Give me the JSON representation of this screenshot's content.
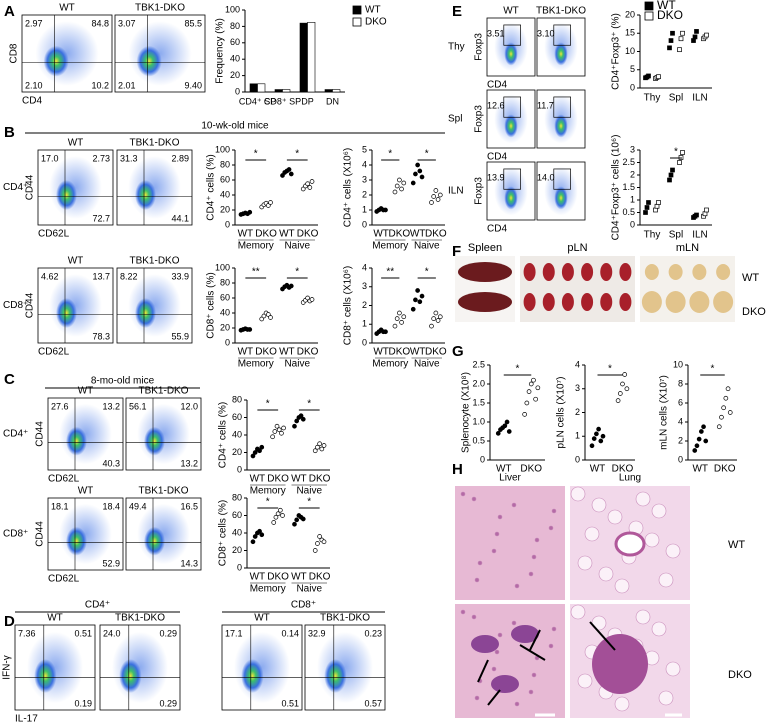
{
  "figure": {
    "panel_letters": [
      "A",
      "B",
      "C",
      "D",
      "E",
      "F",
      "G",
      "H"
    ],
    "flow": [
      {
        "headers": [
          "WT",
          "TBK1-DKO"
        ],
        "rows": [
          {
            "y_label": "CD8",
            "x_label": "CD4",
            "plots": [
              {
                "ul": "2.97",
                "ur": "84.8",
                "ll": "2.10",
                "lr": "10.2"
              },
              {
                "ul": "3.07",
                "ur": "85.5",
                "ll": "2.01",
                "lr": "9.40"
              }
            ]
          }
        ]
      },
      {
        "title": "10-wk-old mice",
        "headers": [
          "WT",
          "TBK1-DKO"
        ],
        "rows": [
          {
            "label": "CD4⁺",
            "y_label": "CD44",
            "x_label": "CD62L",
            "plots": [
              {
                "ul": "17.0",
                "ur": "2.73",
                "lr": "72.7"
              },
              {
                "ul": "31.3",
                "ur": "2.89",
                "lr": "44.1"
              }
            ]
          },
          {
            "label": "CD8⁺",
            "y_label": "CD44",
            "x_label": "CD62L",
            "plots": [
              {
                "ul": "4.62",
                "ur": "13.7",
                "lr": "78.3"
              },
              {
                "ul": "8.22",
                "ur": "33.9",
                "lr": "55.9"
              }
            ]
          }
        ]
      },
      {
        "title": "8-mo-old mice",
        "headers": [
          "WT",
          "TBK1-DKO"
        ],
        "rows": [
          {
            "label": "CD4⁺",
            "y_label": "CD44",
            "x_label": "CD62L",
            "plots": [
              {
                "ul": "27.6",
                "ur": "13.2",
                "lr": "40.3"
              },
              {
                "ul": "56.1",
                "ur": "12.0",
                "lr": "13.2"
              }
            ]
          },
          {
            "label": "CD8⁺",
            "y_label": "CD44",
            "x_label": "CD62L",
            "plots": [
              {
                "ul": "18.1",
                "ur": "18.4",
                "lr": "52.9"
              },
              {
                "ul": "49.4",
                "ur": "16.5",
                "lr": "14.3"
              }
            ]
          }
        ]
      },
      {
        "title": "CD4⁺",
        "headers": [
          "WT",
          "TBK1-DKO"
        ],
        "rows": [
          {
            "y_label": "IFN-γ",
            "x_label": "IL-17",
            "plots": [
              {
                "ul": "7.36",
                "ur": "0.51",
                "lr": "0.19"
              },
              {
                "ul": "24.0",
                "ur": "0.29",
                "lr": "0.29"
              }
            ]
          }
        ]
      },
      {
        "title": "CD8⁺",
        "headers": [
          "WT",
          "TBK1-DKO"
        ],
        "rows": [
          {
            "plots": [
              {
                "ul": "17.1",
                "ur": "0.14",
                "lr": "0.51"
              },
              {
                "ul": "32.9",
                "ur": "0.23",
                "lr": "0.57"
              }
            ]
          }
        ]
      },
      {
        "headers": [
          "WT",
          "TBK1-DKO"
        ],
        "rows": [
          {
            "label": "Thy",
            "y_label": "Foxp3",
            "x_label": "CD4",
            "plots": [
              {
                "ul": "3.51"
              },
              {
                "ul": "3.10"
              }
            ]
          },
          {
            "label": "Spl",
            "y_label": "Foxp3",
            "x_label": "CD4",
            "plots": [
              {
                "ul": "12.6"
              },
              {
                "ul": "11.7"
              }
            ]
          },
          {
            "label": "ILN",
            "y_label": "Foxp3",
            "x_label": "CD4",
            "plots": [
              {
                "ul": "13.9"
              },
              {
                "ul": "14.0"
              }
            ]
          }
        ]
      }
    ],
    "F": {
      "tissues": [
        "Spleen",
        "pLN",
        "mLN"
      ],
      "rows": [
        "WT",
        "DKO"
      ]
    },
    "H": {
      "columns": [
        "Liver",
        "Lung"
      ],
      "rows": [
        "WT",
        "DKO"
      ]
    }
  },
  "chart_data": [
    {
      "type": "bar",
      "y_label": "Frequency (%)",
      "categories": [
        "CD4⁺ SP",
        "CD8⁺ SP",
        "DP",
        "DN"
      ],
      "series": [
        {
          "name": "WT",
          "color": "#000000",
          "values": [
            10,
            3,
            84,
            3
          ]
        },
        {
          "name": "DKO",
          "color": "#ffffff",
          "values": [
            10,
            3,
            85,
            3
          ]
        }
      ],
      "ylim": [
        0,
        100
      ],
      "yticks": [
        0,
        20,
        40,
        60,
        80,
        100
      ],
      "legend": "right"
    },
    {
      "type": "dot",
      "y_label": "CD4⁺ cells (%)",
      "categories": [
        "WT",
        "DKO",
        "WT",
        "DKO"
      ],
      "groups": [
        "Memory",
        "Naive"
      ],
      "colors": [
        "#000000",
        "#ffffff",
        "#000000",
        "#ffffff"
      ],
      "values": [
        [
          14,
          15,
          16,
          15,
          17
        ],
        [
          24,
          27,
          29,
          26,
          30
        ],
        [
          66,
          70,
          72,
          74,
          68
        ],
        [
          48,
          52,
          55,
          50,
          58
        ]
      ],
      "significance": [
        "*",
        "*"
      ],
      "ylim": [
        0,
        100
      ],
      "yticks": [
        0,
        20,
        40,
        60,
        80,
        100
      ]
    },
    {
      "type": "dot",
      "y_label": "CD4⁺ cells (X10⁶)",
      "categories": [
        "WT",
        "DKO",
        "WT",
        "DKO"
      ],
      "groups": [
        "Memory",
        "Naive"
      ],
      "colors": [
        "#000000",
        "#ffffff",
        "#000000",
        "#ffffff"
      ],
      "values": [
        [
          0.9,
          1.0,
          1.1,
          1.0,
          1.0
        ],
        [
          2.2,
          2.6,
          3.0,
          2.4,
          2.8
        ],
        [
          2.8,
          3.4,
          4.0,
          3.6,
          3.2
        ],
        [
          1.5,
          1.9,
          2.3,
          1.7,
          2.0
        ]
      ],
      "significance": [
        "*",
        "*"
      ],
      "ylim": [
        0,
        5
      ],
      "yticks": [
        0,
        1,
        2,
        3,
        4,
        5
      ]
    },
    {
      "type": "dot",
      "y_label": "CD8⁺ cells (%)",
      "categories": [
        "WT",
        "DKO",
        "WT",
        "DKO"
      ],
      "groups": [
        "Memory",
        "Naive"
      ],
      "colors": [
        "#000000",
        "#ffffff",
        "#000000",
        "#ffffff"
      ],
      "values": [
        [
          17,
          18,
          19,
          18,
          18
        ],
        [
          32,
          36,
          40,
          38,
          34
        ],
        [
          72,
          75,
          77,
          74,
          76
        ],
        [
          54,
          57,
          60,
          56,
          58
        ]
      ],
      "significance": [
        "**",
        "*"
      ],
      "ylim": [
        0,
        100
      ],
      "yticks": [
        0,
        20,
        40,
        60,
        80,
        100
      ]
    },
    {
      "type": "dot",
      "y_label": "CD8⁺ cells (X10⁶)",
      "categories": [
        "WT",
        "DKO",
        "WT",
        "DKO"
      ],
      "groups": [
        "Memory",
        "Naive"
      ],
      "colors": [
        "#000000",
        "#ffffff",
        "#000000",
        "#ffffff"
      ],
      "values": [
        [
          0.5,
          0.6,
          0.7,
          0.6,
          0.6
        ],
        [
          0.9,
          1.3,
          1.6,
          1.1,
          1.4
        ],
        [
          1.8,
          2.3,
          2.8,
          2.2,
          2.5
        ],
        [
          0.9,
          1.3,
          1.6,
          1.2,
          1.4
        ]
      ],
      "significance": [
        "**",
        "*"
      ],
      "ylim": [
        0,
        4
      ],
      "yticks": [
        0,
        1,
        2,
        3,
        4
      ]
    },
    {
      "type": "dot",
      "y_label": "CD4⁺ cells (%)",
      "categories": [
        "WT",
        "DKO",
        "WT",
        "DKO"
      ],
      "groups": [
        "Memory",
        "Naive"
      ],
      "colors": [
        "#000000",
        "#ffffff",
        "#000000",
        "#ffffff"
      ],
      "values": [
        [
          16,
          20,
          24,
          22,
          26
        ],
        [
          38,
          44,
          50,
          46,
          42,
          48
        ],
        [
          50,
          56,
          60,
          62,
          58
        ],
        [
          22,
          26,
          30,
          24,
          28
        ]
      ],
      "significance": [
        "*",
        "*"
      ],
      "ylim": [
        0,
        80
      ],
      "yticks": [
        0,
        20,
        40,
        60,
        80
      ]
    },
    {
      "type": "dot",
      "y_label": "CD8⁺ cells (%)",
      "categories": [
        "WT",
        "DKO",
        "WT",
        "DKO"
      ],
      "groups": [
        "Memory",
        "Naive"
      ],
      "colors": [
        "#000000",
        "#ffffff",
        "#000000",
        "#ffffff"
      ],
      "values": [
        [
          30,
          36,
          40,
          42,
          38
        ],
        [
          52,
          58,
          62,
          66,
          60
        ],
        [
          50,
          55,
          60,
          58,
          56
        ],
        [
          20,
          28,
          36,
          32,
          30
        ]
      ],
      "significance": [
        "*",
        "*"
      ],
      "ylim": [
        0,
        80
      ],
      "yticks": [
        0,
        20,
        40,
        60,
        80
      ]
    },
    {
      "type": "paired",
      "y_label": "CD4⁺Foxp3⁺ (%)",
      "categories": [
        "Thy",
        "Spl",
        "ILN"
      ],
      "series": [
        {
          "name": "WT",
          "color": "#000000",
          "values": [
            [
              2.8,
              3.0,
              3.3
            ],
            [
              11,
              13,
              15
            ],
            [
              13,
              14,
              15.5
            ]
          ]
        },
        {
          "name": "DKO",
          "color": "#ffffff",
          "values": [
            [
              2.6,
              2.9,
              3.1
            ],
            [
              10.5,
              13.5,
              15
            ],
            [
              13.5,
              14,
              14.5
            ]
          ]
        }
      ],
      "ylim": [
        0,
        20
      ],
      "yticks": [
        0,
        5,
        10,
        15,
        20
      ],
      "legend": "top"
    },
    {
      "type": "paired",
      "y_label": "CD4⁺Foxp3⁺ cells (10⁶)",
      "categories": [
        "Thy",
        "Spl",
        "ILN"
      ],
      "series": [
        {
          "name": "WT",
          "color": "#000000",
          "values": [
            [
              0.5,
              0.7,
              0.9
            ],
            [
              1.8,
              2.0,
              2.2
            ],
            [
              0.3,
              0.35,
              0.4
            ]
          ]
        },
        {
          "name": "DKO",
          "color": "#ffffff",
          "values": [
            [
              0.6,
              0.75,
              0.9
            ],
            [
              2.5,
              2.7,
              2.9
            ],
            [
              0.35,
              0.45,
              0.6
            ]
          ]
        }
      ],
      "significance": [
        null,
        "*",
        null
      ],
      "ylim": [
        0,
        3
      ],
      "yticks": [
        0,
        0.5,
        1,
        1.5,
        2,
        2.5,
        3
      ]
    },
    {
      "type": "dot",
      "y_label": "Splenocyte (X10⁸)",
      "categories": [
        "WT",
        "DKO"
      ],
      "colors": [
        "#000000",
        "#ffffff"
      ],
      "values": [
        [
          0.7,
          0.8,
          0.85,
          0.9,
          1.0,
          0.75
        ],
        [
          1.2,
          1.5,
          1.8,
          2.0,
          2.1,
          1.6,
          1.9
        ]
      ],
      "significance": [
        "*"
      ],
      "ylim": [
        0,
        2.5
      ],
      "yticks": [
        0,
        0.5,
        {
          "value": 1,
          "label": "1.0"
        },
        1.5,
        {
          "value": 2,
          "label": "2.0"
        },
        2.5
      ]
    },
    {
      "type": "dot",
      "y_label": "pLN cells (X10⁷)",
      "categories": [
        "WT",
        "DKO"
      ],
      "colors": [
        "#000000",
        "#ffffff"
      ],
      "values": [
        [
          0.6,
          0.9,
          1.1,
          1.3,
          0.8,
          1.0
        ],
        [
          2.5,
          2.8,
          3.2,
          3.6,
          3.0
        ]
      ],
      "significance": [
        "*"
      ],
      "ylim": [
        0,
        4
      ],
      "yticks": [
        0,
        1,
        2,
        3,
        4
      ]
    },
    {
      "type": "dot",
      "y_label": "mLN cells (X10⁷)",
      "categories": [
        "WT",
        "DKO"
      ],
      "colors": [
        "#000000",
        "#ffffff"
      ],
      "values": [
        [
          1,
          1.5,
          2.2,
          3,
          3.5,
          2
        ],
        [
          3.5,
          4.5,
          5.5,
          6.5,
          7.5,
          5
        ]
      ],
      "significance": [
        "*"
      ],
      "ylim": [
        0,
        10
      ],
      "yticks": [
        0,
        2,
        4,
        6,
        8,
        10
      ]
    }
  ]
}
